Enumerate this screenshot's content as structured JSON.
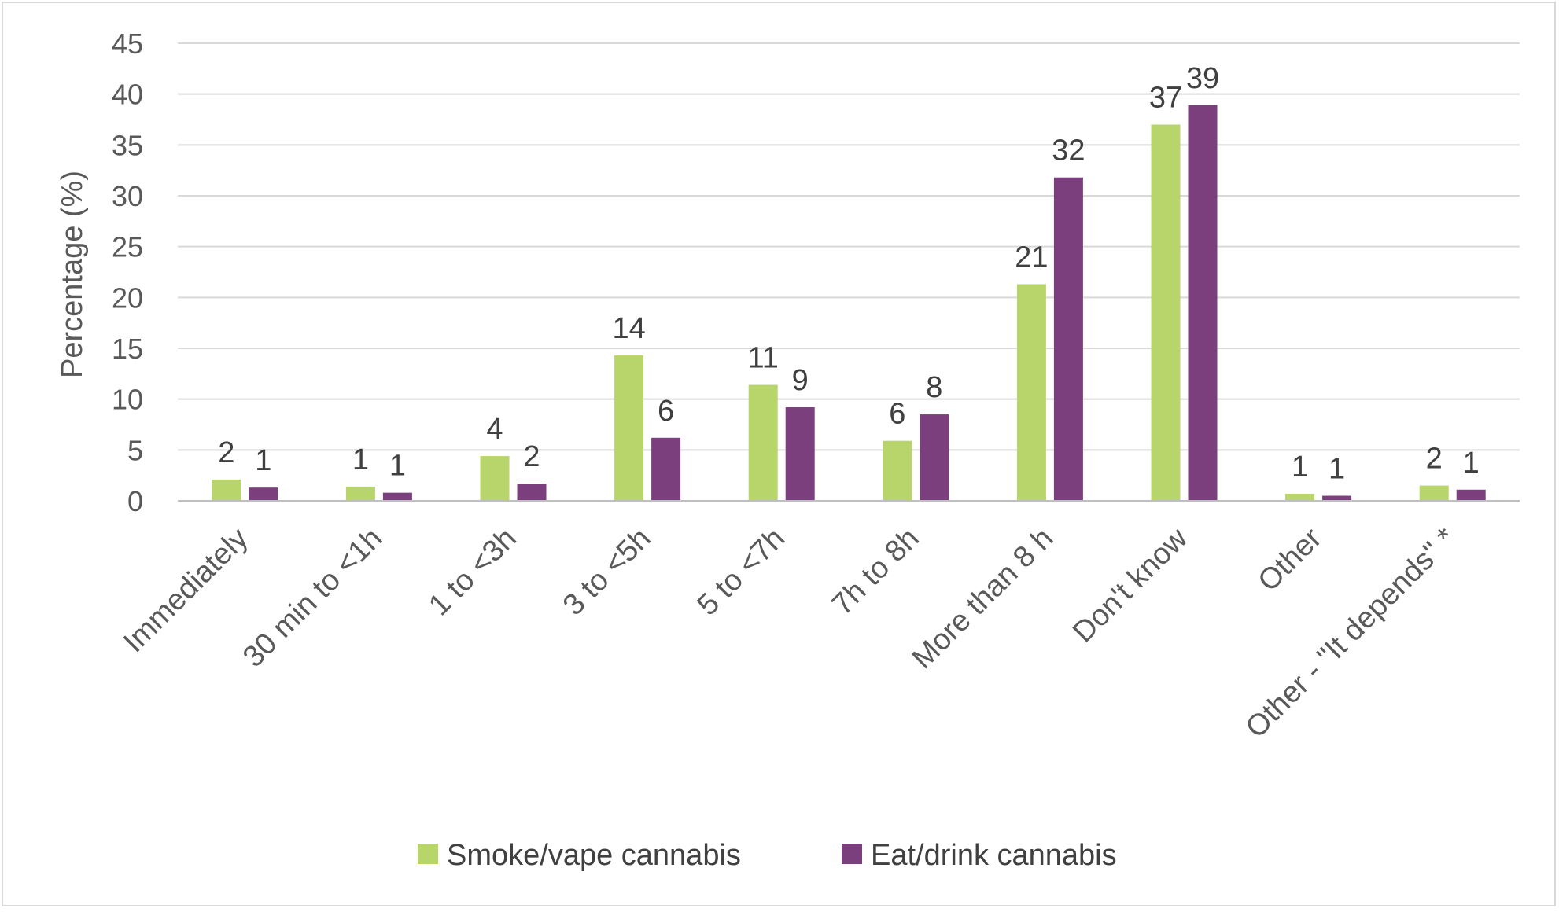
{
  "chart_data": {
    "type": "bar",
    "title": "",
    "xlabel": "",
    "ylabel": "Percentage (%)",
    "ylim": [
      0,
      45
    ],
    "yticks": [
      0,
      5,
      10,
      15,
      20,
      25,
      30,
      35,
      40,
      45
    ],
    "grid": true,
    "legend_position": "bottom",
    "categories": [
      "Immediately",
      "30 min to <1h",
      "1 to <3h",
      "3 to <5h",
      "5 to <7h",
      "7h to 8h",
      "More than 8 h",
      "Don't know",
      "Other",
      "Other - \"It depends\" *"
    ],
    "series": [
      {
        "name": "Smoke/vape cannabis",
        "color": "#b7d56b",
        "values": [
          2.1,
          1.4,
          4.4,
          14.3,
          11.4,
          5.9,
          21.3,
          37.0,
          0.7,
          1.5
        ],
        "labels": [
          "2",
          "1",
          "4",
          "14",
          "11",
          "6",
          "21",
          "37",
          "1",
          "2"
        ]
      },
      {
        "name": "Eat/drink cannabis",
        "color": "#7b3f7d",
        "values": [
          1.3,
          0.8,
          1.7,
          6.2,
          9.2,
          8.5,
          31.8,
          38.9,
          0.5,
          1.1
        ],
        "labels": [
          "1",
          "1",
          "2",
          "6",
          "9",
          "8",
          "32",
          "39",
          "1",
          "1"
        ]
      }
    ]
  }
}
